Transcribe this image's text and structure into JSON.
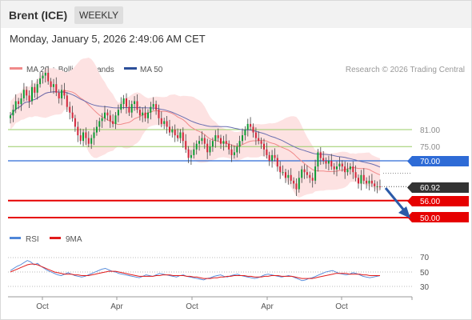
{
  "header": {
    "instrument": "Brent (ICE)",
    "period": "WEEKLY",
    "timestamp": "Monday, January 5, 2026 2:49:06 AM CET"
  },
  "legend": {
    "ma20": "MA 20 + Bollinger Bands",
    "ma50": "MA 50",
    "credit": "Research © 2026 Trading Central"
  },
  "rsi_legend": {
    "rsi": "RSI",
    "ma9": "9MA"
  },
  "colors": {
    "candle_up": "#0b9b33",
    "candle_down": "#d2263b",
    "ma20": "#f08a8a",
    "bollinger_fill": "#fde2e2",
    "ma50": "#6a6fb0",
    "support": "#e60000",
    "pivot": "#2e6bd6",
    "resistance": "#99cc66",
    "last_price": "#333333",
    "arrow": "#2b5aa8",
    "rsi": "#4f86d8",
    "rsi_ma": "#e11b1b"
  },
  "chart_data": [
    {
      "type": "candlestick",
      "title": "Brent (ICE) weekly",
      "x_tick_labels": [
        "Oct",
        "Apr",
        "Oct",
        "Apr",
        "Oct"
      ],
      "ylim": [
        40,
        110
      ],
      "indicators": [
        "MA 20 + Bollinger Bands",
        "MA 50"
      ],
      "levels": [
        {
          "label": "81.00",
          "value": 81,
          "kind": "resistance"
        },
        {
          "label": "75.00",
          "value": 75,
          "kind": "resistance"
        },
        {
          "label": "70.00",
          "value": 70,
          "kind": "pivot"
        },
        {
          "label": "60.92",
          "value": 60.92,
          "kind": "last"
        },
        {
          "label": "56.00",
          "value": 56,
          "kind": "support"
        },
        {
          "label": "50.00",
          "value": 50,
          "kind": "support"
        }
      ],
      "close_series": [
        86,
        88,
        91,
        90,
        92,
        95,
        93,
        91,
        96,
        94,
        97,
        99,
        100,
        101,
        98,
        96,
        97,
        94,
        92,
        95,
        93,
        89,
        87,
        85,
        82,
        79,
        77,
        80,
        78,
        76,
        78,
        80,
        82,
        84,
        85,
        87,
        86,
        84,
        83,
        86,
        88,
        90,
        92,
        89,
        87,
        90,
        91,
        88,
        86,
        87,
        85,
        87,
        89,
        90,
        88,
        85,
        83,
        84,
        82,
        80,
        81,
        79,
        78,
        80,
        77,
        74,
        71,
        72,
        74,
        76,
        77,
        78,
        76,
        73,
        75,
        77,
        79,
        78,
        76,
        77,
        76,
        74,
        72,
        73,
        75,
        77,
        79,
        81,
        83,
        82,
        80,
        78,
        77,
        76,
        74,
        72,
        70,
        72,
        71,
        68,
        66,
        66,
        64,
        65,
        63,
        62,
        60,
        64,
        67,
        66,
        65,
        64,
        63,
        68,
        73,
        71,
        70,
        69,
        70,
        68,
        67,
        68,
        69,
        68,
        66,
        67,
        68,
        66,
        64,
        62,
        65,
        63,
        62,
        63,
        62,
        61,
        61,
        60.92
      ]
    },
    {
      "type": "line",
      "title": "RSI",
      "y_tick_labels": [
        "70",
        "50",
        "30"
      ],
      "ylim": [
        20,
        80
      ],
      "series": [
        {
          "name": "RSI",
          "values": [
            52,
            55,
            58,
            60,
            63,
            66,
            64,
            60,
            62,
            58,
            55,
            52,
            50,
            48,
            46,
            45,
            47,
            49,
            47,
            45,
            44,
            43,
            44,
            46,
            48,
            50,
            52,
            54,
            55,
            53,
            51,
            50,
            48,
            47,
            46,
            45,
            44,
            43,
            42,
            44,
            46,
            45,
            44,
            46,
            48,
            47,
            46,
            45,
            44,
            43,
            45,
            46,
            44,
            43,
            42,
            41,
            40,
            39,
            41,
            42,
            44,
            45,
            46,
            44,
            43,
            45,
            46,
            47,
            45,
            44,
            43,
            42,
            41,
            42,
            44,
            46,
            47,
            46,
            45,
            44,
            43,
            44,
            45,
            44,
            42,
            40,
            38,
            39,
            41,
            42,
            44,
            46,
            48,
            50,
            51,
            52,
            50,
            48,
            47,
            46,
            47,
            49,
            48,
            46,
            44,
            43,
            42,
            43,
            44,
            45
          ]
        },
        {
          "name": "9MA",
          "values": [
            50,
            52,
            54,
            56,
            58,
            60,
            61,
            61,
            60,
            58,
            56,
            54,
            52,
            50,
            49,
            48,
            47,
            47,
            47,
            46,
            46,
            45,
            45,
            45,
            46,
            47,
            48,
            49,
            50,
            51,
            51,
            51,
            50,
            49,
            48,
            47,
            46,
            45,
            44,
            44,
            44,
            44,
            44,
            45,
            45,
            46,
            46,
            46,
            45,
            45,
            45,
            45,
            44,
            44,
            43,
            43,
            42,
            41,
            41,
            41,
            42,
            42,
            43,
            43,
            44,
            44,
            45,
            45,
            45,
            45,
            44,
            44,
            43,
            43,
            43,
            44,
            44,
            45,
            45,
            45,
            44,
            44,
            44,
            44,
            43,
            42,
            41,
            41,
            41,
            41,
            42,
            43,
            44,
            45,
            46,
            47,
            48,
            48,
            48,
            48,
            47,
            47,
            47,
            47,
            46,
            46,
            45,
            45,
            45,
            45
          ]
        }
      ]
    }
  ]
}
